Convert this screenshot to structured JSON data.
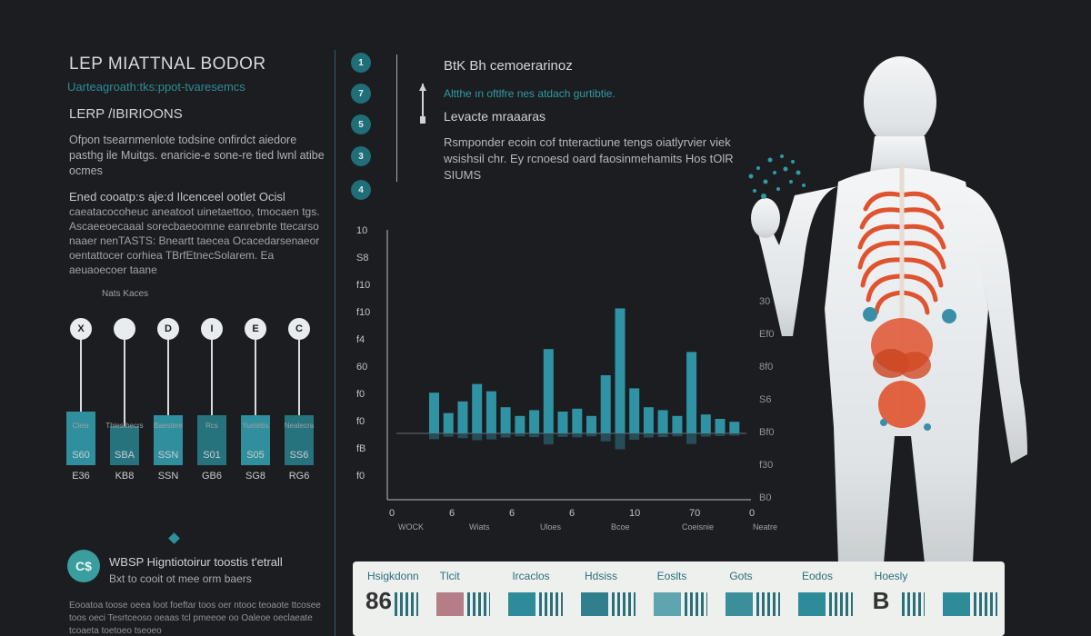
{
  "left": {
    "title": "LEP MIATTNAL BODOR",
    "subtitle": "Uarteagroath:tks:ppot-tvaresemcs",
    "heading": "LERP /IBIRIOONS",
    "paragraph1": "Ofpon tsearnmenlote todsine onfirdct aiedore pasthg ile Muitgs. enaricie-e sone-re tied lwnl atibe ocmes",
    "paragraph2_lead": "Ened cooatp:s aje:d Ilcenceel ootlet Ocisl",
    "paragraph2": "caeatacocoheuc aneatoot uinetaettoo, tmocaen tgs. Ascaeeoecaaal sorecbaeoomne eanrebnte ttecarso naaer nenTASTS: Bneartt taecea Ocacedarsenaeor oentattocer corhiea TBrfEtnecSolarem. Ea aeuaoecoer taane",
    "mini_chart_label": "Nats Kaces",
    "mini_bars": [
      {
        "icon": "X",
        "caption": "Clesr",
        "value1": "S60",
        "value2": "E36",
        "level": 0.45
      },
      {
        "icon": "",
        "caption": "Thiesthecrs",
        "value1": "SBA",
        "value2": "KB8",
        "level": 0.33
      },
      {
        "icon": "D",
        "caption": "Baestere",
        "value1": "SSN",
        "value2": "SSN",
        "level": 0.42
      },
      {
        "icon": "I",
        "caption": "Rcs",
        "value1": "S01",
        "value2": "GB6",
        "level": 0.42
      },
      {
        "icon": "E",
        "caption": "Yuetebs",
        "value1": "S05",
        "value2": "SG8",
        "level": 0.42
      },
      {
        "icon": "C",
        "caption": "Neatecra",
        "value1": "SS6",
        "value2": "RG6",
        "level": 0.42
      }
    ],
    "badge_icon": "C$",
    "badge_title": "WBSP Higntiotoirur toostis t'etrall",
    "badge_subtitle": "Bxt to cooit ot mee orm baers",
    "bottom_paragraph": "Eooatoa toose oeea loot foeftar toos oer ntooc teoaote ttcosee toos oeci Tesrtceoso oeaas tcl pmeeoe oo Oaleoe oeclaeate tcoaeta toetoeo tseoeo"
  },
  "steps": [
    "1",
    "7",
    "5",
    "3",
    "4"
  ],
  "center": {
    "title": "BtK Bh cemoerarinoz",
    "subtitle": "Altthe ın oftlfre nes atdach gurtibtie.",
    "heading": "Levacte mraaaras",
    "paragraph": "Rsmponder ecoin cof tnteractiune tengs oiatlyrvier viek wsishsil chr. Ey rcnoesd oard faosinmehamits Hos tOlR SIUMS"
  },
  "chart_data": {
    "type": "bar",
    "y_ticks_left": [
      "10",
      "S8",
      "f10",
      "f10",
      "f4",
      "60",
      "f0",
      "f0",
      "fB",
      "f0"
    ],
    "y_ticks_right": [
      "30",
      "Ef0",
      "8f0",
      "S6",
      "Bf0",
      "f30",
      "B0"
    ],
    "x_ticks": [
      "0",
      "6",
      "6",
      "6",
      "10",
      "70",
      "0"
    ],
    "x_labels": [
      "WOCK",
      "Wiats",
      "Uloes",
      "Bcoe",
      "Coeisnie",
      "Neatre"
    ],
    "values": [
      28,
      14,
      22,
      34,
      29,
      18,
      12,
      16,
      58,
      15,
      17,
      12,
      40,
      86,
      31,
      18,
      16,
      12,
      56,
      13,
      10,
      8
    ],
    "ylim": [
      0,
      100
    ],
    "grid": false
  },
  "legend": [
    {
      "name": "Hsigkdonn",
      "swatch": "#b6b9bb",
      "glyph": "86"
    },
    {
      "name": "Tlcit",
      "swatch": "#b57d85"
    },
    {
      "name": "Ircaclos",
      "swatch": "#2e8c98"
    },
    {
      "name": "Hdsiss",
      "swatch": "#2f7f8d"
    },
    {
      "name": "Eoslts",
      "swatch": "#5fa5b0"
    },
    {
      "name": "Gots",
      "swatch": "#3b8f9a"
    },
    {
      "name": "Eodos",
      "swatch": "#2e8c98"
    },
    {
      "name": "Hoesly",
      "swatch": "#4a4a4a",
      "glyph": "B"
    },
    {
      "name": "",
      "swatch": "#2e8c98"
    }
  ],
  "colors": {
    "background": "#1c1d20",
    "accent": "#2f8f9c",
    "organ": "#e0532f"
  }
}
